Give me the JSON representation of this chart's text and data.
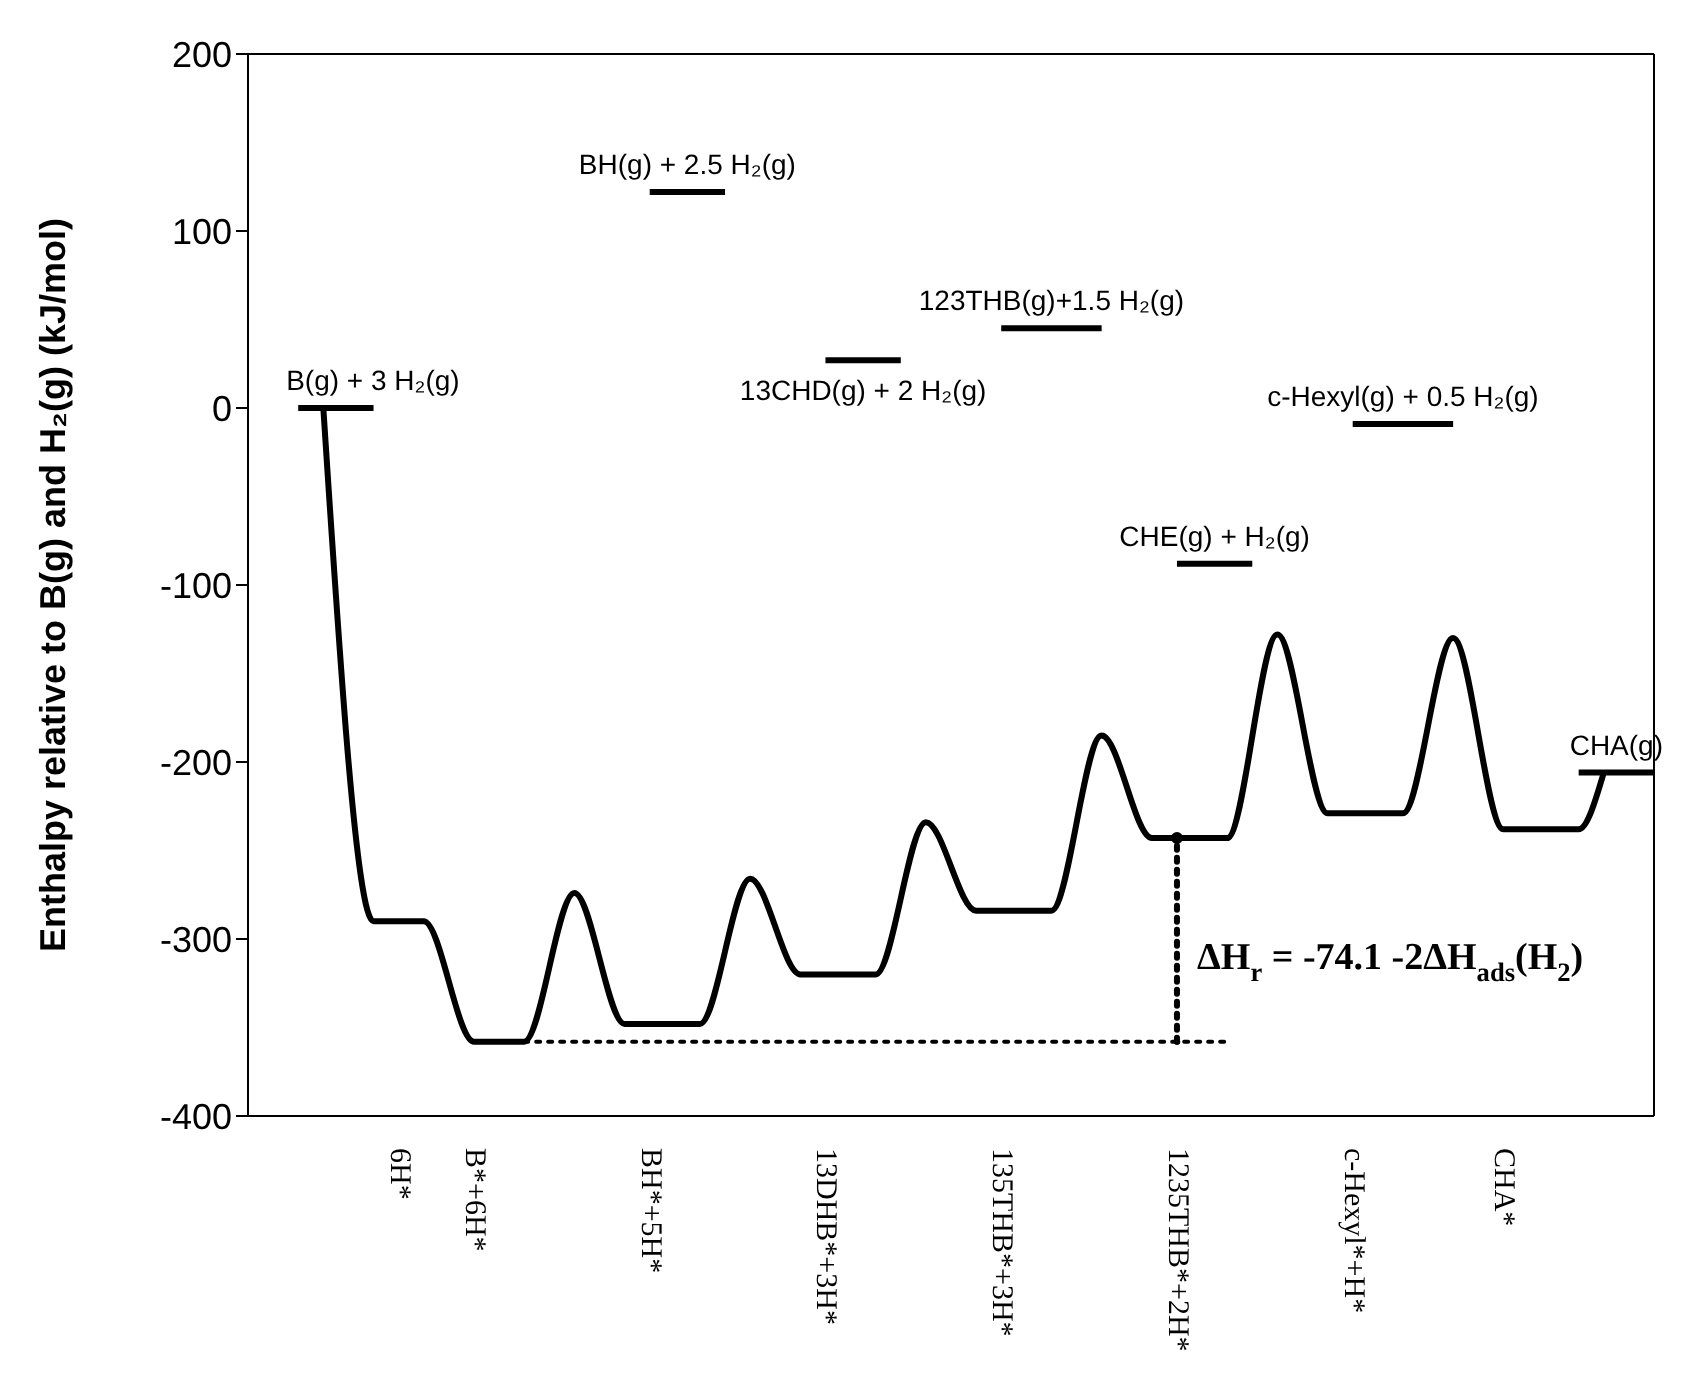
{
  "chart_data": {
    "type": "line",
    "ylabel": "Enthalpy relative to B(g) and H₂(g) (kJ/mol)",
    "ylim": [
      -400,
      200
    ],
    "yticks": [
      200,
      100,
      0,
      -100,
      -200,
      -300,
      -400
    ],
    "categories": [
      null,
      null,
      null,
      null,
      null,
      null,
      "6H*",
      null,
      null,
      "B*+6H*",
      null,
      null,
      null,
      null,
      null,
      null,
      "BH*+5H*",
      null,
      null,
      null,
      null,
      null,
      null,
      "13DHB*+3H*",
      null,
      null,
      null,
      null,
      null,
      null,
      "135THB*+3H*",
      null,
      null,
      null,
      null,
      null,
      null,
      "1235THB*+2H*",
      null,
      null,
      null,
      null,
      null,
      null,
      "c-Hexyl*+H*",
      null,
      null,
      null,
      null,
      null,
      "CHA*",
      null,
      null,
      null,
      null,
      null,
      null
    ],
    "series": [
      {
        "color": "#000000",
        "line_style": "solid",
        "values": [
          null,
          null,
          null,
          0,
          null,
          -290,
          null,
          -290,
          null,
          -358,
          null,
          -358,
          null,
          -274,
          null,
          -348,
          null,
          null,
          -348,
          null,
          -266,
          null,
          -320,
          null,
          null,
          -320,
          null,
          -234,
          null,
          -284,
          null,
          null,
          -284,
          null,
          -185,
          null,
          -243,
          null,
          null,
          -243,
          null,
          -128,
          null,
          -229,
          null,
          null,
          -229,
          null,
          -130,
          null,
          -238,
          null,
          null,
          -238,
          -206,
          null,
          null
        ]
      },
      {
        "name": "B(g) + 3 H₂(g)",
        "color": "#000000",
        "line_style": "solid",
        "values": [
          null,
          null,
          0,
          null,
          null,
          0,
          null,
          null,
          null,
          null,
          null,
          null,
          null,
          null,
          null,
          null,
          null,
          null,
          null,
          null,
          null,
          null,
          null,
          null,
          null,
          null,
          null,
          null,
          null,
          null,
          null,
          null,
          null,
          null,
          null,
          null,
          null,
          null,
          null,
          null,
          null,
          null,
          null,
          null,
          null,
          null,
          null,
          null,
          null,
          null,
          null,
          null,
          null,
          null,
          null,
          null,
          null
        ]
      },
      {
        "name": "BH(g) + 2.5 H₂(g)",
        "color": "#000000",
        "line_style": "solid",
        "values": [
          null,
          null,
          null,
          null,
          null,
          null,
          null,
          null,
          null,
          null,
          null,
          null,
          null,
          null,
          null,
          null,
          122,
          null,
          null,
          122,
          null,
          null,
          null,
          null,
          null,
          null,
          null,
          null,
          null,
          null,
          null,
          null,
          null,
          null,
          null,
          null,
          null,
          null,
          null,
          null,
          null,
          null,
          null,
          null,
          null,
          null,
          null,
          null,
          null,
          null,
          null,
          null,
          null,
          null,
          null,
          null,
          null
        ]
      },
      {
        "name": "13CHD(g) + 2 H₂(g)",
        "color": "#000000",
        "line_style": "solid",
        "values": [
          null,
          null,
          null,
          null,
          null,
          null,
          null,
          null,
          null,
          null,
          null,
          null,
          null,
          null,
          null,
          null,
          null,
          null,
          null,
          null,
          null,
          null,
          null,
          27,
          null,
          null,
          27,
          null,
          null,
          null,
          null,
          null,
          null,
          null,
          null,
          null,
          null,
          null,
          null,
          null,
          null,
          null,
          null,
          null,
          null,
          null,
          null,
          null,
          null,
          null,
          null,
          null,
          null,
          null,
          null,
          null,
          null
        ]
      },
      {
        "name": "123THB(g)+1.5 H₂(g)",
        "color": "#000000",
        "line_style": "solid",
        "values": [
          null,
          null,
          null,
          null,
          null,
          null,
          null,
          null,
          null,
          null,
          null,
          null,
          null,
          null,
          null,
          null,
          null,
          null,
          null,
          null,
          null,
          null,
          null,
          null,
          null,
          null,
          null,
          null,
          null,
          null,
          45,
          null,
          null,
          null,
          45,
          null,
          null,
          null,
          null,
          null,
          null,
          null,
          null,
          null,
          null,
          null,
          null,
          null,
          null,
          null,
          null,
          null,
          null,
          null,
          null,
          null,
          null
        ]
      },
      {
        "name": "CHE(g) + H₂(g)",
        "color": "#000000",
        "line_style": "solid",
        "values": [
          null,
          null,
          null,
          null,
          null,
          null,
          null,
          null,
          null,
          null,
          null,
          null,
          null,
          null,
          null,
          null,
          null,
          null,
          null,
          null,
          null,
          null,
          null,
          null,
          null,
          null,
          null,
          null,
          null,
          null,
          null,
          null,
          null,
          null,
          null,
          null,
          null,
          -88,
          null,
          null,
          -88,
          null,
          null,
          null,
          null,
          null,
          null,
          null,
          null,
          null,
          null,
          null,
          null,
          null,
          null,
          null,
          null
        ]
      },
      {
        "name": "c-Hexyl(g) + 0.5 H₂(g)",
        "color": "#000000",
        "line_style": "solid",
        "values": [
          null,
          null,
          null,
          null,
          null,
          null,
          null,
          null,
          null,
          null,
          null,
          null,
          null,
          null,
          null,
          null,
          null,
          null,
          null,
          null,
          null,
          null,
          null,
          null,
          null,
          null,
          null,
          null,
          null,
          null,
          null,
          null,
          null,
          null,
          null,
          null,
          null,
          null,
          null,
          null,
          null,
          null,
          null,
          null,
          -9,
          null,
          null,
          null,
          -9,
          null,
          null,
          null,
          null,
          null,
          null,
          null,
          null
        ]
      },
      {
        "name": "CHA(g)",
        "color": "#000000",
        "line_style": "solid",
        "values": [
          null,
          null,
          null,
          null,
          null,
          null,
          null,
          null,
          null,
          null,
          null,
          null,
          null,
          null,
          null,
          null,
          null,
          null,
          null,
          null,
          null,
          null,
          null,
          null,
          null,
          null,
          null,
          null,
          null,
          null,
          null,
          null,
          null,
          null,
          null,
          null,
          null,
          null,
          null,
          null,
          null,
          null,
          null,
          null,
          null,
          null,
          null,
          null,
          null,
          null,
          null,
          null,
          null,
          -206,
          null,
          null,
          -206
        ]
      },
      {
        "color": "#000000",
        "line_style": "dotted",
        "values": [
          null,
          null,
          null,
          null,
          null,
          null,
          null,
          null,
          null,
          null,
          null,
          -358,
          null,
          null,
          null,
          null,
          null,
          null,
          null,
          null,
          null,
          null,
          null,
          null,
          null,
          null,
          null,
          null,
          null,
          null,
          null,
          null,
          null,
          null,
          null,
          null,
          null,
          null,
          null,
          -358,
          null,
          null,
          null,
          null,
          null,
          null,
          null,
          null,
          null,
          null,
          null,
          null,
          null,
          null,
          null,
          null,
          null
        ]
      },
      {
        "type": "scatter",
        "marker": "circle",
        "color": "#000000",
        "line_style": "dotted",
        "values": [
          null,
          null,
          null,
          null,
          null,
          null,
          null,
          null,
          null,
          null,
          null,
          null,
          null,
          null,
          null,
          null,
          null,
          null,
          null,
          null,
          null,
          null,
          null,
          null,
          null,
          null,
          null,
          null,
          null,
          null,
          null,
          null,
          null,
          null,
          null,
          null,
          null,
          -243,
          null,
          null,
          null,
          null,
          null,
          null,
          null,
          null,
          null,
          null,
          null,
          null,
          null,
          null,
          null,
          null,
          null,
          null,
          null
        ],
        "errors": [
          null,
          null,
          null,
          null,
          null,
          null,
          null,
          null,
          null,
          null,
          null,
          null,
          null,
          null,
          null,
          null,
          null,
          null,
          null,
          null,
          null,
          null,
          null,
          null,
          null,
          null,
          null,
          null,
          null,
          null,
          null,
          null,
          null,
          null,
          null,
          null,
          null,
          [
            -358,
            -243
          ],
          null,
          null,
          null,
          null,
          null,
          null,
          null,
          null,
          null,
          null,
          null,
          null,
          null,
          null,
          null,
          null,
          null,
          null,
          null
        ]
      }
    ],
    "annotations": [
      "ΔH$_{r}$ = -74.1 -2ΔH$_{ads}$(H$_{2}$)"
    ]
  }
}
